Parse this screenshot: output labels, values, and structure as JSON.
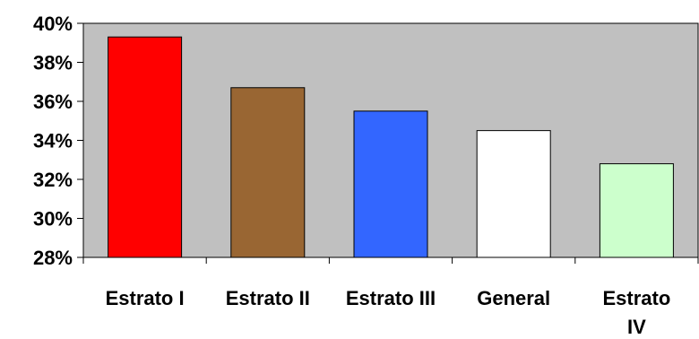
{
  "chart_data": {
    "type": "bar",
    "title": "",
    "xlabel": "",
    "ylabel": "",
    "categories": [
      [
        "Estrato I"
      ],
      [
        "Estrato II"
      ],
      [
        "Estrato III"
      ],
      [
        "General"
      ],
      [
        "Estrato",
        "IV"
      ]
    ],
    "values": [
      39.3,
      36.7,
      35.5,
      34.5,
      32.8
    ],
    "colors": [
      "#ff0000",
      "#996633",
      "#3366ff",
      "#ffffff",
      "#ccffcc"
    ],
    "ylim": [
      28,
      40
    ],
    "yticks": [
      28,
      30,
      32,
      34,
      36,
      38,
      40
    ],
    "ytick_labels": [
      "28%",
      "30%",
      "32%",
      "34%",
      "36%",
      "38%",
      "40%"
    ],
    "plot_background": "#c0c0c0",
    "grid": false,
    "legend": "none"
  }
}
